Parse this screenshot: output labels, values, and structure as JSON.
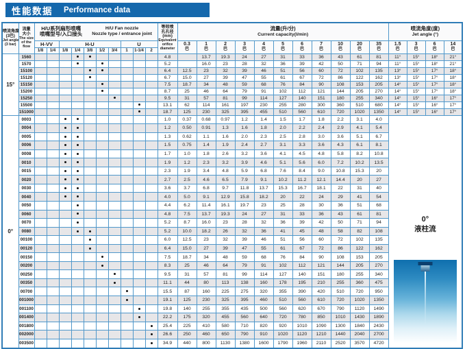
{
  "title": {
    "zh": "性能数据",
    "en": "Performance data"
  },
  "header": {
    "jet_angle_col": {
      "lines": [
        "喷流角度",
        "(3巴)",
        "Jet angle",
        "(3 bar)"
      ]
    },
    "flow_col": {
      "lines": [
        "流量",
        "大小",
        "The size",
        "of the",
        "flow"
      ]
    },
    "nozzle_group": {
      "zh1": "H/U系列扇形喷嘴",
      "zh2": "喷嘴型号/入口接头",
      "en1": "H/U  Fan nozzle",
      "en2": "Nozzle type / entrance joint"
    },
    "nozzle_types": [
      {
        "label": "H-VV"
      },
      {
        "label": "H-U"
      },
      {
        "label": "U"
      }
    ],
    "sizes": [
      "1/8",
      "1/4",
      "1/8",
      "1/4",
      "3/8",
      "1/2",
      "3/4",
      "1",
      "1-1/4",
      "2"
    ],
    "orifice_col": {
      "lines": [
        "等效喷",
        "孔孔径",
        "(mm)",
        "Equivalent",
        "orifice",
        "diameter"
      ]
    },
    "capacity_group": {
      "zh": "流量(升/分)",
      "en": "Current capacity(l/min)"
    },
    "pressures": [
      "0.3",
      "1",
      "2",
      "3",
      "4",
      "5",
      "6",
      "7",
      "10",
      "20",
      "35"
    ],
    "bar_unit": "巴",
    "angle_group": {
      "zh": "喷流角度(度)",
      "en": "Jet angle (°)"
    },
    "angle_pressures": [
      "1.5",
      "3",
      "6",
      "14"
    ]
  },
  "zero_stream": {
    "angle": "0°",
    "label": "液柱流"
  },
  "sections": [
    {
      "angle": "15°",
      "rows": [
        {
          "flow": "1560",
          "dots": [
            3,
            4
          ],
          "orifice": "4.8",
          "capacity": [
            "",
            "13.7",
            "19.3",
            "24",
            "27",
            "31",
            "33",
            "36",
            "43",
            "61",
            "81"
          ],
          "angles": [
            "11°",
            "15°",
            "18°",
            "21°"
          ]
        },
        {
          "flow": "1570",
          "dots": [
            3,
            5
          ],
          "orifice": "5.2",
          "capacity": [
            "",
            "16.0",
            "23",
            "28",
            "32",
            "36",
            "39",
            "42",
            "50",
            "71",
            "94"
          ],
          "angles": [
            "11°",
            "15°",
            "18°",
            "21°"
          ]
        },
        {
          "flow": "15100",
          "dots": [
            4,
            5
          ],
          "orifice": "6.4",
          "capacity": [
            "12.5",
            "23",
            "32",
            "39",
            "46",
            "51",
            "56",
            "60",
            "72",
            "102",
            "135"
          ],
          "angles": [
            "13°",
            "15°",
            "17°",
            "18°"
          ]
        },
        {
          "flow": "15120",
          "dots": [
            4
          ],
          "orifice": "6.7",
          "capacity": [
            "15.0",
            "27",
            "39",
            "47",
            "55",
            "61",
            "67",
            "72",
            "86",
            "122",
            "162"
          ],
          "angles": [
            "13°",
            "15°",
            "17°",
            "18°"
          ]
        },
        {
          "flow": "15150",
          "dots": [
            5
          ],
          "orifice": "7.5",
          "capacity": [
            "18.7",
            "34",
            "48",
            "59",
            "68",
            "76",
            "84",
            "90",
            "108",
            "153",
            "205"
          ],
          "angles": [
            "14°",
            "15°",
            "17°",
            "18°"
          ]
        },
        {
          "flow": "15200",
          "dots": [
            5
          ],
          "orifice": "8.7",
          "capacity": [
            "25",
            "46",
            "64",
            "79",
            "91",
            "102",
            "112",
            "121",
            "144",
            "205",
            "270"
          ],
          "angles": [
            "14°",
            "15°",
            "17°",
            "18°"
          ]
        },
        {
          "flow": "15250",
          "dots": [
            6
          ],
          "orifice": "9.5",
          "capacity": [
            "31",
            "57",
            "81",
            "99",
            "114",
            "127",
            "140",
            "151",
            "180",
            "255",
            "340"
          ],
          "angles": [
            "14°",
            "15°",
            "16°",
            "17°"
          ]
        },
        {
          "flow": "15500",
          "dots": [
            8
          ],
          "orifice": "13.1",
          "capacity": [
            "62",
            "114",
            "161",
            "197",
            "230",
            "255",
            "280",
            "300",
            "360",
            "510",
            "680"
          ],
          "angles": [
            "14°",
            "15°",
            "16°",
            "17°"
          ]
        },
        {
          "flow": "151000",
          "dots": [
            8
          ],
          "orifice": "18.7",
          "capacity": [
            "125",
            "230",
            "325",
            "395",
            "455",
            "510",
            "560",
            "610",
            "720",
            "1020",
            "1350"
          ],
          "angles": [
            "14°",
            "15°",
            "16°",
            "17°"
          ]
        }
      ]
    },
    {
      "angle": "0°",
      "rows": [
        {
          "flow": "0003",
          "dots": [
            2,
            3
          ],
          "orifice": "1.0",
          "capacity": [
            "0.37",
            "0.68",
            "0.97",
            "1.2",
            "1.4",
            "1.5",
            "1.7",
            "1.8",
            "2.2",
            "3.1",
            "4.0"
          ]
        },
        {
          "flow": "0004",
          "dots": [
            2,
            3
          ],
          "orifice": "1.2",
          "capacity": [
            "0.50",
            "0.91",
            "1.3",
            "1.6",
            "1.8",
            "2.0",
            "2.2",
            "2.4",
            "2.9",
            "4.1",
            "5.4"
          ]
        },
        {
          "flow": "0005",
          "dots": [
            2,
            3
          ],
          "orifice": "1.3",
          "capacity": [
            "0.62",
            "1.1",
            "1.6",
            "2.0",
            "2.3",
            "2.5",
            "2.8",
            "3.0",
            "3.6",
            "5.1",
            "6.7"
          ]
        },
        {
          "flow": "0006",
          "dots": [
            2,
            3
          ],
          "orifice": "1.5",
          "capacity": [
            "0.75",
            "1.4",
            "1.9",
            "2.4",
            "2.7",
            "3.1",
            "3.3",
            "3.6",
            "4.3",
            "6.1",
            "8.1"
          ]
        },
        {
          "flow": "0008",
          "dots": [
            2,
            3
          ],
          "orifice": "1.7",
          "capacity": [
            "1.0",
            "1.8",
            "2.6",
            "3.2",
            "3.6",
            "4.1",
            "4.5",
            "4.8",
            "5.8",
            "8.2",
            "10.8"
          ]
        },
        {
          "flow": "0010",
          "dots": [
            2,
            3
          ],
          "orifice": "1.9",
          "capacity": [
            "1.2",
            "2.3",
            "3.2",
            "3.9",
            "4.6",
            "5.1",
            "5.6",
            "6.0",
            "7.2",
            "10.2",
            "13.5"
          ]
        },
        {
          "flow": "0015",
          "dots": [
            2,
            3
          ],
          "orifice": "2.3",
          "capacity": [
            "1.9",
            "3.4",
            "4.8",
            "5.9",
            "6.8",
            "7.6",
            "8.4",
            "9.0",
            "10.8",
            "15.3",
            "20"
          ]
        },
        {
          "flow": "0020",
          "dots": [
            2,
            3
          ],
          "orifice": "2.7",
          "capacity": [
            "2.5",
            "4.6",
            "6.5",
            "7.9",
            "9.1",
            "10.2",
            "11.2",
            "12.1",
            "14.4",
            "20",
            "27"
          ]
        },
        {
          "flow": "0030",
          "dots": [
            2,
            3
          ],
          "orifice": "3.6",
          "capacity": [
            "3.7",
            "6.8",
            "9.7",
            "11.8",
            "13.7",
            "15.3",
            "16.7",
            "18.1",
            "22",
            "31",
            "40"
          ]
        },
        {
          "flow": "0040",
          "dots": [
            2,
            3
          ],
          "orifice": "4.0",
          "capacity": [
            "5.0",
            "9.1",
            "12.9",
            "15.8",
            "18.2",
            "20",
            "22",
            "24",
            "29",
            "41",
            "54"
          ]
        },
        {
          "flow": "0050",
          "dots": [
            3
          ],
          "orifice": "4.4",
          "capacity": [
            "6.2",
            "11.4",
            "16.1",
            "19.7",
            "23",
            "25",
            "28",
            "30",
            "36",
            "51",
            "68"
          ]
        },
        {
          "flow": "0060",
          "dots": [
            3
          ],
          "orifice": "4.8",
          "capacity": [
            "7.5",
            "13.7",
            "19.3",
            "24",
            "27",
            "31",
            "33",
            "36",
            "43",
            "61",
            "81"
          ]
        },
        {
          "flow": "0070",
          "dots": [
            3
          ],
          "orifice": "5.2",
          "capacity": [
            "8.7",
            "16.0",
            "23",
            "28",
            "32",
            "36",
            "39",
            "42",
            "50",
            "71",
            "94"
          ]
        },
        {
          "flow": "0080",
          "dots": [
            3,
            4
          ],
          "orifice": "5.2",
          "capacity": [
            "10.0",
            "18.2",
            "26",
            "32",
            "36",
            "41",
            "45",
            "48",
            "58",
            "82",
            "108"
          ]
        },
        {
          "flow": "00100",
          "dots": [
            4
          ],
          "orifice": "6.0",
          "capacity": [
            "12.5",
            "23",
            "32",
            "39",
            "46",
            "51",
            "56",
            "60",
            "72",
            "102",
            "135"
          ]
        },
        {
          "flow": "00120",
          "dots": [
            4
          ],
          "orifice": "6.4",
          "capacity": [
            "15.0",
            "27",
            "39",
            "47",
            "55",
            "61",
            "67",
            "72",
            "86",
            "122",
            "162"
          ]
        },
        {
          "flow": "00150",
          "dots": [
            5
          ],
          "orifice": "7.5",
          "capacity": [
            "18.7",
            "34",
            "48",
            "59",
            "68",
            "76",
            "84",
            "90",
            "108",
            "153",
            "205"
          ]
        },
        {
          "flow": "00200",
          "dots": [
            5
          ],
          "orifice": "8.3",
          "capacity": [
            "25",
            "46",
            "64",
            "79",
            "91",
            "102",
            "112",
            "121",
            "144",
            "205",
            "270"
          ]
        },
        {
          "flow": "00250",
          "dots": [
            6
          ],
          "orifice": "9.5",
          "capacity": [
            "31",
            "57",
            "81",
            "99",
            "114",
            "127",
            "140",
            "151",
            "180",
            "255",
            "340"
          ]
        },
        {
          "flow": "00350",
          "dots": [
            6
          ],
          "orifice": "11.1",
          "capacity": [
            "44",
            "80",
            "113",
            "138",
            "160",
            "178",
            "195",
            "210",
            "255",
            "360",
            "475"
          ]
        },
        {
          "flow": "00700",
          "dots": [
            7
          ],
          "orifice": "15.5",
          "capacity": [
            "87",
            "160",
            "225",
            "275",
            "320",
            "355",
            "390",
            "420",
            "510",
            "720",
            "950"
          ]
        },
        {
          "flow": "001000",
          "dots": [
            7
          ],
          "orifice": "19.1",
          "capacity": [
            "125",
            "230",
            "325",
            "395",
            "460",
            "510",
            "560",
            "610",
            "720",
            "1020",
            "1350"
          ]
        },
        {
          "flow": "001100",
          "dots": [
            8
          ],
          "orifice": "19.8",
          "capacity": [
            "140",
            "255",
            "355",
            "435",
            "500",
            "560",
            "620",
            "670",
            "790",
            "1120",
            "1490"
          ]
        },
        {
          "flow": "001400",
          "dots": [
            8
          ],
          "orifice": "22.2",
          "capacity": [
            "175",
            "320",
            "455",
            "560",
            "640",
            "720",
            "780",
            "850",
            "1010",
            "1430",
            "1890"
          ]
        },
        {
          "flow": "001800",
          "dots": [
            9
          ],
          "orifice": "25.4",
          "capacity": [
            "225",
            "410",
            "580",
            "710",
            "820",
            "920",
            "1010",
            "1090",
            "1300",
            "1840",
            "2430"
          ]
        },
        {
          "flow": "002000",
          "dots": [
            9
          ],
          "orifice": "26.6",
          "capacity": [
            "250",
            "460",
            "650",
            "790",
            "910",
            "1020",
            "1120",
            "1210",
            "1440",
            "2040",
            "2700"
          ]
        },
        {
          "flow": "003500",
          "dots": [
            9
          ],
          "orifice": "34.9",
          "capacity": [
            "440",
            "800",
            "1130",
            "1380",
            "1600",
            "1790",
            "1960",
            "2110",
            "2520",
            "3570",
            "4720"
          ]
        }
      ]
    }
  ]
}
